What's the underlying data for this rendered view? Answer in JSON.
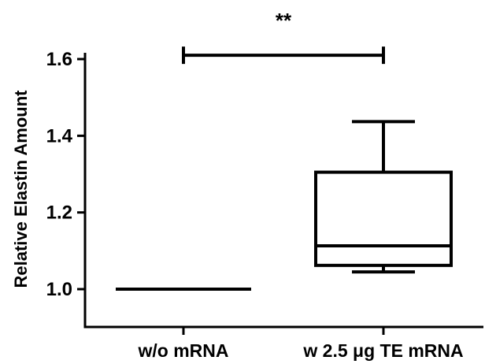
{
  "chart_data": {
    "type": "box",
    "ylabel": "Relative Elastin Amount",
    "ylim": [
      0.9,
      1.6
    ],
    "yticks": [
      1.0,
      1.2,
      1.4,
      1.6
    ],
    "ytick_labels": [
      "1.0",
      "1.2",
      "1.4",
      "1.6"
    ],
    "categories": [
      "w/o mRNA",
      "w 2.5 μg TE mRNA"
    ],
    "boxes": [
      {
        "category": "w/o mRNA",
        "min": 1.0,
        "q1": 1.0,
        "median": 1.0,
        "q3": 1.0,
        "max": 1.0
      },
      {
        "category": "w 2.5 μg TE mRNA",
        "min": 1.045,
        "q1": 1.062,
        "median": 1.113,
        "q3": 1.305,
        "max": 1.437
      }
    ],
    "significance": {
      "label": "**",
      "from": "w/o mRNA",
      "to": "w 2.5 μg TE mRNA",
      "y": 1.61
    },
    "grid": false,
    "colors": {
      "ink": "#000000",
      "background": "#ffffff"
    }
  }
}
